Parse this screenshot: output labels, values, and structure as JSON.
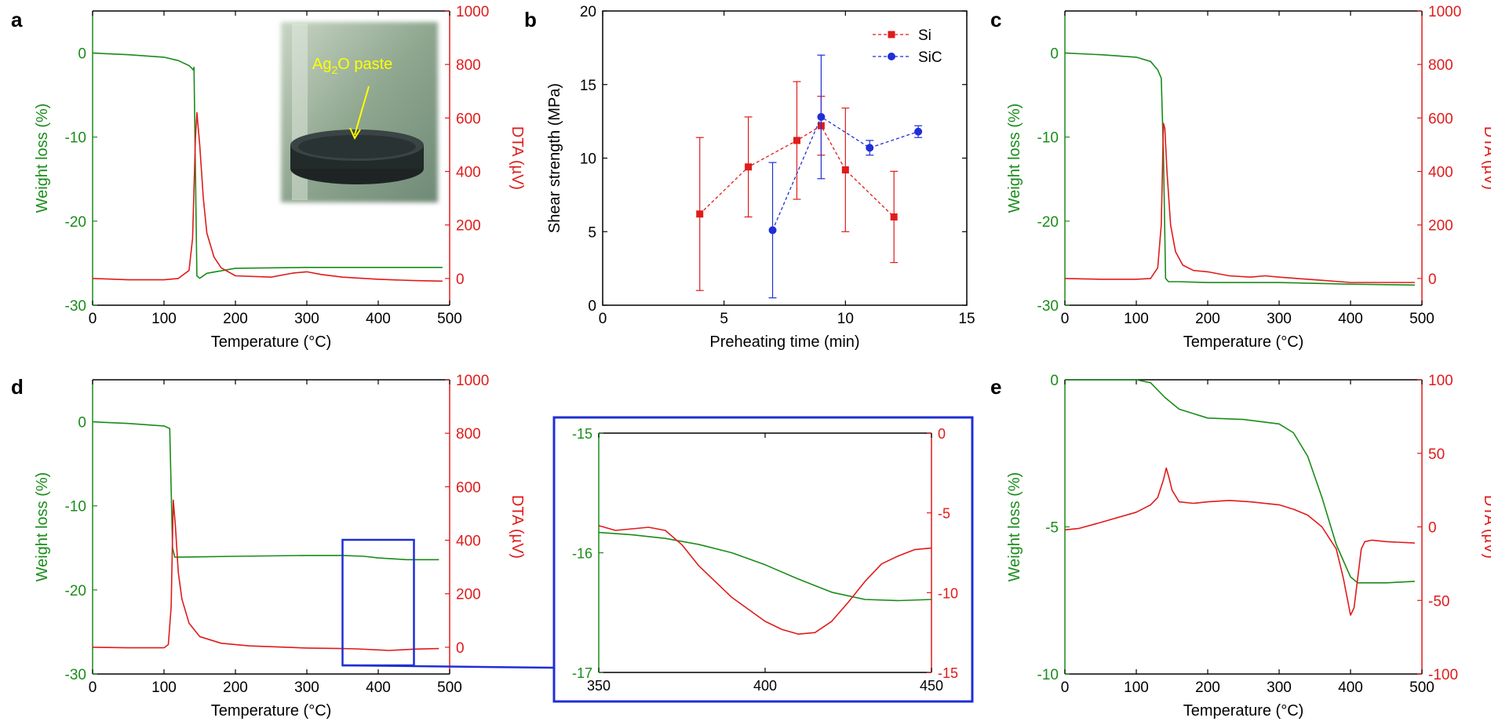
{
  "colors": {
    "green": "#1a8c1a",
    "red": "#e01b1b",
    "blue": "#1f2fd6",
    "black": "#000000",
    "photo_label": "#ffff00"
  },
  "panel_letters": {
    "a": "a",
    "b": "b",
    "c": "c",
    "d": "d",
    "e": "e"
  },
  "photo": {
    "label_main": "Ag",
    "label_sub": "2",
    "label_tail": "O paste"
  },
  "chart_data": [
    {
      "id": "a",
      "type": "line",
      "xlabel": "Temperature (°C)",
      "ylabel_left": "Weight loss (%)",
      "ylabel_right": "DTA (µV)",
      "xlim": [
        0,
        500
      ],
      "ylim_left": [
        -30,
        5
      ],
      "ylim_right": [
        -100,
        1000
      ],
      "xticks": [
        0,
        100,
        200,
        300,
        400,
        500
      ],
      "xtick_labels": [
        "0",
        "100",
        "200",
        "300",
        "400",
        "500"
      ],
      "yticks_left": [
        0,
        -10,
        -20,
        -30
      ],
      "ytick_labels_left": [
        "0",
        "-10",
        "-20",
        "-30"
      ],
      "yticks_right": [
        0,
        200,
        400,
        600,
        800,
        1000
      ],
      "ytick_labels_right": [
        "0",
        "200",
        "400",
        "600",
        "800",
        "1000"
      ],
      "series": [
        {
          "axis": "left",
          "color": "green",
          "x": [
            0,
            50,
            100,
            120,
            135,
            141,
            142,
            146,
            150,
            160,
            200,
            300,
            400,
            490
          ],
          "y": [
            0,
            -0.2,
            -0.5,
            -0.9,
            -1.5,
            -2.0,
            -1.7,
            -26.5,
            -26.8,
            -26.2,
            -25.6,
            -25.5,
            -25.5,
            -25.5
          ]
        },
        {
          "axis": "right",
          "color": "red",
          "x": [
            0,
            50,
            100,
            120,
            135,
            140,
            144,
            146,
            150,
            155,
            160,
            170,
            180,
            200,
            250,
            280,
            300,
            320,
            350,
            400,
            450,
            490
          ],
          "y": [
            0,
            -5,
            -5,
            0,
            30,
            150,
            520,
            620,
            500,
            300,
            170,
            80,
            40,
            10,
            5,
            20,
            25,
            15,
            5,
            -3,
            -8,
            -10
          ]
        }
      ]
    },
    {
      "id": "b",
      "type": "scatter",
      "xlabel": "Preheating time (min)",
      "ylabel": "Shear strength (MPa)",
      "xlim": [
        0,
        15
      ],
      "ylim": [
        0,
        20
      ],
      "xticks": [
        0,
        5,
        10,
        15
      ],
      "xtick_labels": [
        "0",
        "5",
        "10",
        "15"
      ],
      "yticks": [
        0,
        5,
        10,
        15,
        20
      ],
      "ytick_labels": [
        "0",
        "5",
        "10",
        "15",
        "20"
      ],
      "legend": "top-right",
      "series": [
        {
          "name": "Si",
          "color": "red",
          "marker": "square",
          "x": [
            4,
            6,
            8,
            9,
            10,
            12
          ],
          "y": [
            6.2,
            9.4,
            11.2,
            12.2,
            9.2,
            6.0
          ],
          "err": [
            5.2,
            3.4,
            4.0,
            2.0,
            4.2,
            3.1
          ]
        },
        {
          "name": "SiC",
          "color": "blue",
          "marker": "circle",
          "x": [
            7,
            9,
            11,
            13
          ],
          "y": [
            5.1,
            12.8,
            10.7,
            11.8
          ],
          "err": [
            4.6,
            4.2,
            0.5,
            0.4
          ]
        }
      ]
    },
    {
      "id": "c",
      "type": "line",
      "xlabel": "Temperature (°C)",
      "ylabel_left": "Weight loss (%)",
      "ylabel_right": "DTA (µV)",
      "xlim": [
        0,
        500
      ],
      "ylim_left": [
        -30,
        5
      ],
      "ylim_right": [
        -100,
        1000
      ],
      "xticks": [
        0,
        100,
        200,
        300,
        400,
        500
      ],
      "xtick_labels": [
        "0",
        "100",
        "200",
        "300",
        "400",
        "500"
      ],
      "yticks_left": [
        0,
        -10,
        -20,
        -30
      ],
      "ytick_labels_left": [
        "0",
        "-10",
        "-20",
        "-30"
      ],
      "yticks_right": [
        0,
        200,
        400,
        600,
        800,
        1000
      ],
      "ytick_labels_right": [
        "0",
        "200",
        "400",
        "600",
        "800",
        "1000"
      ],
      "series": [
        {
          "axis": "left",
          "color": "green",
          "x": [
            0,
            50,
            100,
            120,
            130,
            135,
            138,
            141,
            145,
            160,
            200,
            300,
            400,
            490
          ],
          "y": [
            0,
            -0.2,
            -0.5,
            -1.0,
            -2.0,
            -3.0,
            -12.0,
            -26.8,
            -27.2,
            -27.2,
            -27.3,
            -27.3,
            -27.5,
            -27.6
          ]
        },
        {
          "axis": "right",
          "color": "red",
          "x": [
            0,
            50,
            100,
            120,
            130,
            135,
            138,
            140,
            143,
            148,
            155,
            165,
            180,
            200,
            230,
            260,
            280,
            300,
            350,
            400,
            450,
            490
          ],
          "y": [
            0,
            -3,
            -3,
            0,
            40,
            200,
            580,
            560,
            400,
            200,
            100,
            50,
            30,
            25,
            10,
            5,
            10,
            5,
            -5,
            -15,
            -15,
            -15
          ]
        }
      ]
    },
    {
      "id": "d",
      "type": "line",
      "xlabel": "Temperature (°C)",
      "ylabel_left": "Weight loss (%)",
      "ylabel_right": "DTA (µV)",
      "xlim": [
        0,
        500
      ],
      "ylim_left": [
        -30,
        5
      ],
      "ylim_right": [
        -100,
        1000
      ],
      "xticks": [
        0,
        100,
        200,
        300,
        400,
        500
      ],
      "xtick_labels": [
        "0",
        "100",
        "200",
        "300",
        "400",
        "500"
      ],
      "yticks_left": [
        0,
        -10,
        -20,
        -30
      ],
      "ytick_labels_left": [
        "0",
        "-10",
        "-20",
        "-30"
      ],
      "yticks_right": [
        0,
        200,
        400,
        600,
        800,
        1000
      ],
      "ytick_labels_right": [
        "0",
        "200",
        "400",
        "600",
        "800",
        "1000"
      ],
      "series": [
        {
          "axis": "left",
          "color": "green",
          "x": [
            0,
            50,
            100,
            108,
            110,
            112,
            115,
            120,
            200,
            300,
            350,
            380,
            400,
            420,
            440,
            485
          ],
          "y": [
            0,
            -0.2,
            -0.5,
            -0.8,
            -8.0,
            -15.0,
            -16.1,
            -16.1,
            -16.0,
            -15.9,
            -15.9,
            -16.0,
            -16.2,
            -16.3,
            -16.4,
            -16.4
          ]
        },
        {
          "axis": "right",
          "color": "red",
          "x": [
            0,
            50,
            100,
            106,
            110,
            113,
            116,
            120,
            125,
            135,
            150,
            180,
            220,
            300,
            350,
            370,
            400,
            415,
            430,
            450,
            485
          ],
          "y": [
            0,
            -2,
            -2,
            10,
            150,
            550,
            450,
            280,
            180,
            90,
            40,
            15,
            5,
            -3,
            -5,
            -6,
            -10,
            -12,
            -10,
            -7,
            -5
          ]
        }
      ]
    },
    {
      "id": "d-zoom",
      "type": "line",
      "xlim": [
        350,
        450
      ],
      "ylim_left": [
        -17,
        -15
      ],
      "ylim_right": [
        -15,
        0
      ],
      "xticks": [
        350,
        400,
        450
      ],
      "xtick_labels": [
        "350",
        "400",
        "450"
      ],
      "yticks_left": [
        -15,
        -16,
        -17
      ],
      "ytick_labels_left": [
        "-15",
        "-16",
        "-17"
      ],
      "yticks_right": [
        0,
        -5,
        -10,
        -15
      ],
      "ytick_labels_right": [
        "0",
        "-5",
        "-10",
        "-15"
      ],
      "series": [
        {
          "axis": "left",
          "color": "green",
          "x": [
            350,
            360,
            370,
            380,
            390,
            400,
            410,
            420,
            430,
            440,
            450
          ],
          "y": [
            -15.83,
            -15.85,
            -15.88,
            -15.93,
            -16.0,
            -16.1,
            -16.22,
            -16.33,
            -16.39,
            -16.4,
            -16.39
          ]
        },
        {
          "axis": "right",
          "color": "red",
          "x": [
            350,
            355,
            360,
            365,
            370,
            375,
            380,
            390,
            400,
            405,
            410,
            415,
            420,
            425,
            430,
            435,
            440,
            445,
            450
          ],
          "y": [
            -5.8,
            -6.1,
            -6.0,
            -5.9,
            -6.1,
            -7.0,
            -8.3,
            -10.3,
            -11.8,
            -12.3,
            -12.6,
            -12.5,
            -11.8,
            -10.6,
            -9.3,
            -8.2,
            -7.7,
            -7.3,
            -7.2
          ]
        }
      ]
    },
    {
      "id": "e",
      "type": "line",
      "xlabel": "Temperature (°C)",
      "ylabel_left": "Weight loss (%)",
      "ylabel_right": "DTA (µV)",
      "xlim": [
        0,
        500
      ],
      "ylim_left": [
        -10,
        0
      ],
      "ylim_right": [
        -100,
        100
      ],
      "xticks": [
        0,
        100,
        200,
        300,
        400,
        500
      ],
      "xtick_labels": [
        "0",
        "100",
        "200",
        "300",
        "400",
        "500"
      ],
      "yticks_left": [
        0,
        -5,
        -10
      ],
      "ytick_labels_left": [
        "0",
        "-5",
        "-10"
      ],
      "yticks_right": [
        100,
        50,
        0,
        -50,
        -100
      ],
      "ytick_labels_right": [
        "100",
        "50",
        "0",
        "-50",
        "-100"
      ],
      "series": [
        {
          "axis": "left",
          "color": "green",
          "x": [
            0,
            100,
            120,
            140,
            160,
            200,
            250,
            300,
            320,
            340,
            360,
            380,
            400,
            410,
            450,
            490
          ],
          "y": [
            0,
            0,
            -0.1,
            -0.6,
            -1.0,
            -1.3,
            -1.35,
            -1.5,
            -1.8,
            -2.6,
            -4.0,
            -5.6,
            -6.7,
            -6.9,
            -6.9,
            -6.85
          ]
        },
        {
          "axis": "right",
          "color": "red",
          "x": [
            0,
            20,
            50,
            100,
            120,
            130,
            138,
            142,
            146,
            150,
            160,
            180,
            200,
            230,
            260,
            300,
            320,
            340,
            360,
            380,
            390,
            400,
            405,
            410,
            415,
            420,
            430,
            450,
            490
          ],
          "y": [
            -2,
            -1,
            3,
            10,
            15,
            20,
            32,
            40,
            33,
            25,
            17,
            16,
            17,
            18,
            17,
            15,
            12,
            8,
            0,
            -15,
            -35,
            -60,
            -55,
            -35,
            -15,
            -10,
            -9,
            -10,
            -11
          ]
        }
      ]
    }
  ]
}
